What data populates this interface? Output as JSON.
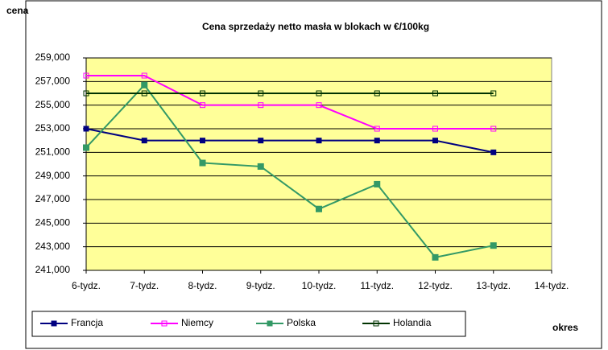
{
  "chart_data": {
    "type": "line",
    "title": "Cena sprzedaży netto masła w blokach w €/100kg",
    "y_label": "cena",
    "x_label": "okres",
    "categories": [
      "6-tydz.",
      "7-tydz.",
      "8-tydz.",
      "9-tydz.",
      "10-tydz.",
      "11-tydz.",
      "12-tydz.",
      "13-tydz.",
      "14-tydz."
    ],
    "series": [
      {
        "name": "Francja",
        "color": "#000080",
        "marker": "filled",
        "values": [
          253000,
          252000,
          252000,
          252000,
          252000,
          252000,
          252000,
          251000,
          null
        ]
      },
      {
        "name": "Niemcy",
        "color": "#ff00ff",
        "marker": "hollow",
        "values": [
          257500,
          257500,
          255000,
          255000,
          255000,
          253000,
          253000,
          253000,
          null
        ]
      },
      {
        "name": "Polska",
        "color": "#339966",
        "marker": "filled",
        "values": [
          251400,
          256700,
          250100,
          249800,
          246200,
          248300,
          242100,
          243100,
          null
        ]
      },
      {
        "name": "Holandia",
        "color": "#003300",
        "marker": "hollow",
        "values": [
          256000,
          256000,
          256000,
          256000,
          256000,
          256000,
          256000,
          256000,
          null
        ]
      }
    ],
    "ylim": [
      241000,
      259000
    ],
    "yticks": [
      {
        "value": 241000,
        "label": "241,000"
      },
      {
        "value": 243000,
        "label": "243,000"
      },
      {
        "value": 245000,
        "label": "245,000"
      },
      {
        "value": 247000,
        "label": "247,000"
      },
      {
        "value": 249000,
        "label": "249,000"
      },
      {
        "value": 251000,
        "label": "251,000"
      },
      {
        "value": 253000,
        "label": "253,000"
      },
      {
        "value": 255000,
        "label": "255,000"
      },
      {
        "value": 257000,
        "label": "257,000"
      },
      {
        "value": 259000,
        "label": "259,000"
      }
    ],
    "grid": true,
    "plot_background": "#ffff99",
    "legend": "bottom"
  }
}
